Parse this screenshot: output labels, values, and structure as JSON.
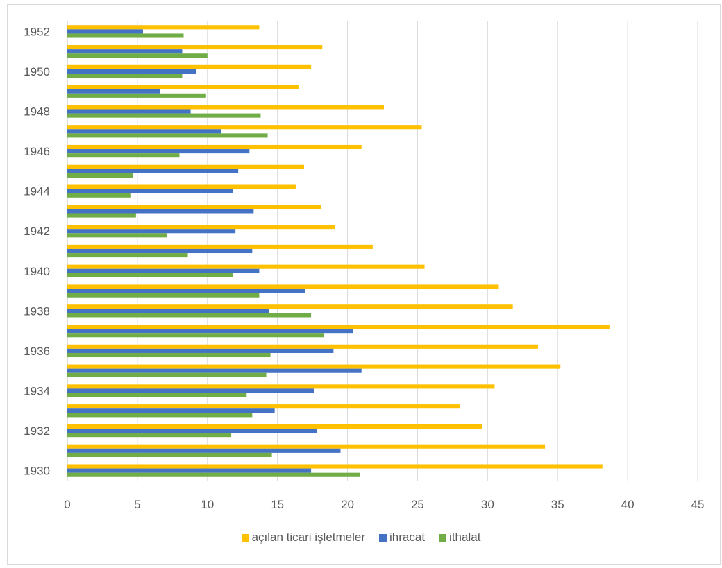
{
  "chart_data": {
    "type": "bar",
    "orientation": "horizontal",
    "title": "",
    "xlabel": "",
    "ylabel": "",
    "xlim": [
      0,
      45
    ],
    "x_ticks": [
      0,
      5,
      10,
      15,
      20,
      25,
      30,
      35,
      40,
      45
    ],
    "grid": true,
    "legend_position": "bottom",
    "categories": [
      "1930",
      "1931",
      "1932",
      "1933",
      "1934",
      "1935",
      "1936",
      "1937",
      "1938",
      "1939",
      "1940",
      "1941",
      "1942",
      "1943",
      "1944",
      "1945",
      "1946",
      "1947",
      "1948",
      "1949",
      "1950",
      "1951",
      "1952"
    ],
    "category_tick_labels": [
      "1930",
      "",
      "1932",
      "",
      "1934",
      "",
      "1936",
      "",
      "1938",
      "",
      "1940",
      "",
      "1942",
      "",
      "1944",
      "",
      "1946",
      "",
      "1948",
      "",
      "1950",
      "",
      "1952"
    ],
    "series": [
      {
        "name": "açılan ticari işletmeler",
        "color": "#FFC000",
        "values": [
          38.2,
          34.1,
          29.6,
          28.0,
          30.5,
          35.2,
          33.6,
          38.7,
          31.8,
          30.8,
          25.5,
          21.8,
          19.1,
          18.1,
          16.3,
          16.9,
          21.0,
          25.3,
          22.6,
          16.5,
          17.4,
          18.2,
          13.7
        ]
      },
      {
        "name": "ihracat",
        "color": "#4472C4",
        "values": [
          17.4,
          19.5,
          17.8,
          14.8,
          17.6,
          21.0,
          19.0,
          20.4,
          14.4,
          17.0,
          13.7,
          13.2,
          12.0,
          13.3,
          11.8,
          12.2,
          13.0,
          11.0,
          8.8,
          6.6,
          9.2,
          8.2,
          5.4
        ]
      },
      {
        "name": "ithalat",
        "color": "#70AD47",
        "values": [
          20.9,
          14.6,
          11.7,
          13.2,
          12.8,
          14.2,
          14.5,
          18.3,
          17.4,
          13.7,
          11.8,
          8.6,
          7.1,
          4.9,
          4.5,
          4.7,
          8.0,
          14.3,
          13.8,
          9.9,
          8.2,
          10.0,
          8.3
        ]
      }
    ]
  }
}
